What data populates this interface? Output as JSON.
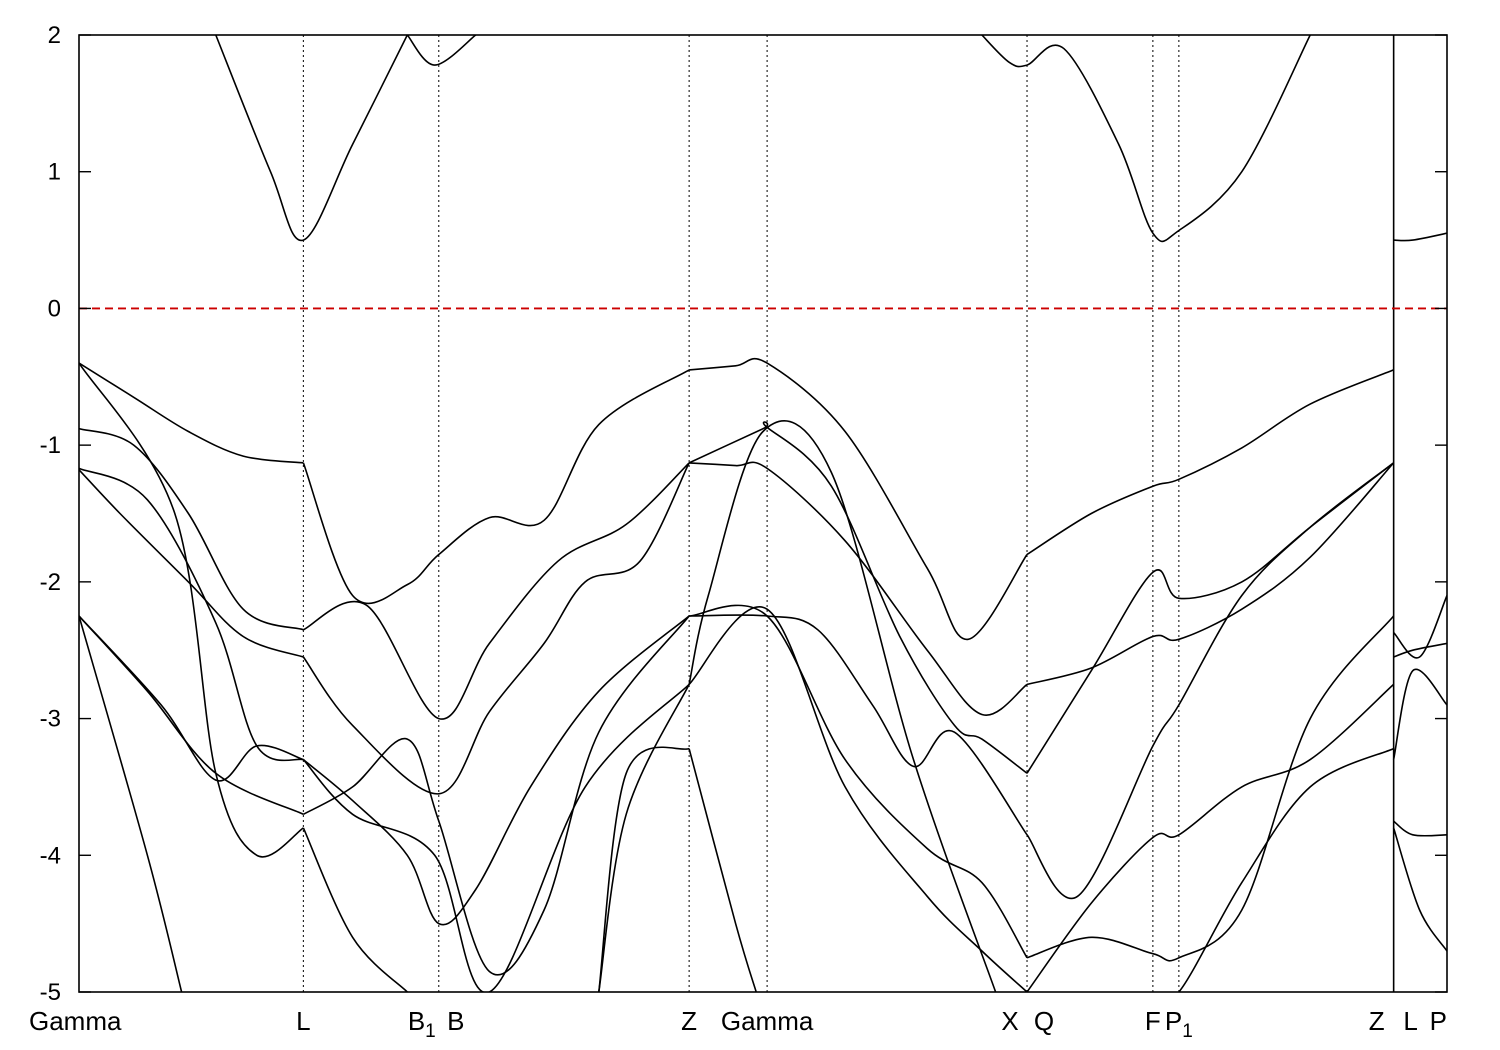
{
  "chart_data": {
    "type": "line",
    "title": "",
    "xlabel": "",
    "ylabel": "",
    "ylim": [
      -5,
      2
    ],
    "yticks": [
      -5,
      -4,
      -3,
      -2,
      -1,
      0,
      1,
      2
    ],
    "fermi_level": {
      "value": 0,
      "color": "#cc0000",
      "style": "dashed"
    },
    "grid": "vertical dotted lines at high-symmetry points",
    "kpoints": [
      {
        "x": 0.0,
        "label": "Gamma",
        "sub": ""
      },
      {
        "x": 0.164,
        "label": "L",
        "sub": ""
      },
      {
        "x": 0.263,
        "label": "B",
        "sub": "1"
      },
      {
        "x": 0.263,
        "label": "B",
        "sub": ""
      },
      {
        "x": 0.446,
        "label": "Z",
        "sub": ""
      },
      {
        "x": 0.503,
        "label": "Gamma",
        "sub": ""
      },
      {
        "x": 0.693,
        "label": "X",
        "sub": ""
      },
      {
        "x": 0.693,
        "label": "Q",
        "sub": ""
      },
      {
        "x": 0.785,
        "label": "F",
        "sub": ""
      },
      {
        "x": 0.804,
        "label": "P",
        "sub": "1"
      },
      {
        "x": 0.961,
        "label": "Z",
        "sub": ""
      },
      {
        "x": 0.961,
        "label": "L",
        "sub": ""
      },
      {
        "x": 1.0,
        "label": "P",
        "sub": ""
      }
    ],
    "series": [
      {
        "x": [
          0.0,
          0.04,
          0.08,
          0.12,
          0.164
        ],
        "values": [
          -0.4,
          -0.65,
          -0.9,
          -1.08,
          -1.13
        ]
      },
      {
        "x": [
          0.164,
          0.2,
          0.24,
          0.263,
          0.3,
          0.34,
          0.38,
          0.446
        ],
        "values": [
          -1.13,
          -2.1,
          -2.02,
          -1.8,
          -1.53,
          -1.55,
          -0.85,
          -0.45
        ]
      },
      {
        "x": [
          0.446,
          0.48,
          0.503,
          0.56,
          0.62,
          0.65,
          0.693
        ],
        "values": [
          -0.45,
          -0.42,
          -0.4,
          -0.9,
          -1.9,
          -2.42,
          -1.8
        ]
      },
      {
        "x": [
          0.693,
          0.74,
          0.785,
          0.804,
          0.85,
          0.9,
          0.961
        ],
        "values": [
          -1.8,
          -1.5,
          -1.3,
          -1.25,
          -1.02,
          -0.7,
          -0.45
        ]
      },
      {
        "x": [
          0.0,
          0.04,
          0.08,
          0.12,
          0.164
        ],
        "values": [
          -0.88,
          -1.0,
          -1.5,
          -2.2,
          -2.35
        ]
      },
      {
        "x": [
          0.164,
          0.21,
          0.263,
          0.3,
          0.35,
          0.4,
          0.446
        ],
        "values": [
          -2.35,
          -2.17,
          -3.0,
          -2.45,
          -1.85,
          -1.58,
          -1.13
        ]
      },
      {
        "x": [
          0.446,
          0.48,
          0.503,
          0.56,
          0.62,
          0.66,
          0.693
        ],
        "values": [
          -1.13,
          -1.15,
          -1.17,
          -1.7,
          -2.5,
          -2.97,
          -2.75
        ]
      },
      {
        "x": [
          0.693,
          0.74,
          0.785,
          0.804,
          0.85,
          0.9,
          0.961
        ],
        "values": [
          -2.75,
          -2.63,
          -2.4,
          -2.42,
          -2.2,
          -1.82,
          -1.13
        ]
      },
      {
        "x": [
          0.0,
          0.03,
          0.08,
          0.12,
          0.164
        ],
        "values": [
          -1.18,
          -1.5,
          -2.0,
          -2.4,
          -2.55
        ]
      },
      {
        "x": [
          0.164,
          0.2,
          0.263,
          0.3,
          0.34,
          0.37,
          0.41,
          0.446
        ],
        "values": [
          -2.55,
          -3.05,
          -3.55,
          -2.95,
          -2.45,
          -2.0,
          -1.85,
          -1.13
        ]
      },
      {
        "x": [
          0.446,
          0.5,
          0.503,
          0.55,
          0.6,
          0.64,
          0.66,
          0.693
        ],
        "values": [
          -1.13,
          -0.88,
          -0.87,
          -1.3,
          -2.4,
          -3.05,
          -3.15,
          -3.4
        ]
      },
      {
        "x": [
          0.693,
          0.74,
          0.785,
          0.804,
          0.85,
          0.9,
          0.961
        ],
        "values": [
          -3.4,
          -2.65,
          -1.93,
          -2.12,
          -2.0,
          -1.6,
          -1.13
        ]
      },
      {
        "x": [
          0.0,
          0.05,
          0.1,
          0.13,
          0.164
        ],
        "values": [
          -1.17,
          -1.4,
          -2.3,
          -3.2,
          -3.3
        ]
      },
      {
        "x": [
          0.164,
          0.2,
          0.24,
          0.263,
          0.29,
          0.33,
          0.38,
          0.446
        ],
        "values": [
          -3.3,
          -3.6,
          -4.0,
          -4.5,
          -4.25,
          -3.5,
          -2.8,
          -2.25
        ]
      },
      {
        "x": [
          0.446,
          0.503,
          0.54,
          0.58,
          0.61,
          0.64,
          0.693
        ],
        "values": [
          -2.25,
          -2.25,
          -2.35,
          -2.9,
          -3.35,
          -3.1,
          -3.85
        ]
      },
      {
        "x": [
          0.693,
          0.73,
          0.785,
          0.804,
          0.85,
          0.9,
          0.961
        ],
        "values": [
          -3.85,
          -4.3,
          -3.2,
          -2.9,
          -2.1,
          -1.6,
          -1.13
        ]
      },
      {
        "x": [
          0.0,
          0.05,
          0.1,
          0.164
        ],
        "values": [
          -2.25,
          -2.8,
          -3.4,
          -3.7
        ]
      },
      {
        "x": [
          0.164,
          0.2,
          0.24,
          0.263,
          0.3,
          0.34,
          0.38,
          0.446
        ],
        "values": [
          -3.7,
          -3.5,
          -3.15,
          -3.75,
          -4.85,
          -4.4,
          -3.1,
          -2.25
        ]
      },
      {
        "x": [
          0.446,
          0.503,
          0.56,
          0.62,
          0.66,
          0.693
        ],
        "values": [
          -2.25,
          -2.25,
          -3.3,
          -3.95,
          -4.2,
          -4.75
        ]
      },
      {
        "x": [
          0.693,
          0.74,
          0.785,
          0.804,
          0.85,
          0.9,
          0.961
        ],
        "values": [
          -4.75,
          -4.6,
          -4.72,
          -4.75,
          -4.4,
          -3.0,
          -2.25
        ]
      },
      {
        "x": [
          0.0,
          0.06,
          0.1,
          0.13,
          0.164
        ],
        "values": [
          -2.25,
          -2.9,
          -3.45,
          -3.2,
          -3.3
        ]
      },
      {
        "x": [
          0.164,
          0.2,
          0.26,
          0.3,
          0.37,
          0.446
        ],
        "values": [
          -3.3,
          -3.7,
          -4.0,
          -5.0,
          -3.5,
          -2.75
        ]
      },
      {
        "x": [
          0.446,
          0.46,
          0.5,
          0.55,
          0.61,
          0.67
        ],
        "values": [
          -2.75,
          -2.1,
          -0.9,
          -1.2,
          -3.3,
          -5.0
        ]
      },
      {
        "x": [
          0.0,
          0.07,
          0.1,
          0.13,
          0.164
        ],
        "values": [
          -0.4,
          -1.5,
          -3.4,
          -4.0,
          -3.8
        ]
      },
      {
        "x": [
          0.164,
          0.2,
          0.24
        ],
        "values": [
          -3.8,
          -4.6,
          -5.0
        ]
      },
      {
        "x": [
          0.0,
          0.05,
          0.075
        ],
        "values": [
          -2.25,
          -4.0,
          -5.0
        ]
      },
      {
        "x": [
          0.38,
          0.4,
          0.446
        ],
        "values": [
          -5.0,
          -3.4,
          -3.22
        ]
      },
      {
        "x": [
          0.446,
          0.48,
          0.495
        ],
        "values": [
          -3.22,
          -4.5,
          -5.0
        ]
      },
      {
        "x": [
          0.38,
          0.4,
          0.446
        ],
        "values": [
          -5.0,
          -3.7,
          -2.75
        ]
      },
      {
        "x": [
          0.446,
          0.503,
          0.56,
          0.62,
          0.66,
          0.693
        ],
        "values": [
          -2.75,
          -2.2,
          -3.5,
          -4.3,
          -4.7,
          -5.0
        ]
      },
      {
        "x": [
          0.693,
          0.74,
          0.785,
          0.804,
          0.85,
          0.9,
          0.961
        ],
        "values": [
          -5.0,
          -4.35,
          -3.87,
          -3.85,
          -3.5,
          -3.3,
          -2.75
        ]
      },
      {
        "x": [
          0.785,
          0.804,
          0.85,
          0.9,
          0.961
        ],
        "values": [
          -5.0,
          -5.0,
          -4.2,
          -3.5,
          -3.22
        ]
      },
      {
        "x": [
          0.961,
          0.975,
          1.0
        ],
        "values": [
          -2.55,
          -2.5,
          -2.45
        ]
      },
      {
        "x": [
          0.961,
          0.975,
          1.0
        ],
        "values": [
          -3.3,
          -2.65,
          -2.9
        ]
      },
      {
        "x": [
          0.961,
          0.975,
          1.0
        ],
        "values": [
          -3.75,
          -3.85,
          -3.85
        ]
      },
      {
        "x": [
          0.961,
          0.98,
          1.0
        ],
        "values": [
          -3.8,
          -4.4,
          -4.7
        ]
      },
      {
        "x": [
          0.961,
          0.98,
          1.0
        ],
        "values": [
          -2.37,
          -2.55,
          -2.1
        ]
      },
      {
        "x": [
          0.961,
          0.975,
          1.0
        ],
        "values": [
          0.5,
          0.5,
          0.55
        ]
      },
      {
        "x": [
          0.1,
          0.14,
          0.164,
          0.2,
          0.24
        ],
        "values": [
          2.0,
          1.0,
          0.5,
          1.2,
          2.0
        ]
      },
      {
        "x": [
          0.24,
          0.26,
          0.29
        ],
        "values": [
          2.0,
          1.78,
          2.0
        ]
      },
      {
        "x": [
          0.66,
          0.68,
          0.693,
          0.72,
          0.76,
          0.785,
          0.804,
          0.85,
          0.9
        ],
        "values": [
          2.0,
          1.8,
          1.78,
          1.9,
          1.2,
          0.55,
          0.57,
          1.0,
          2.0
        ]
      }
    ]
  }
}
